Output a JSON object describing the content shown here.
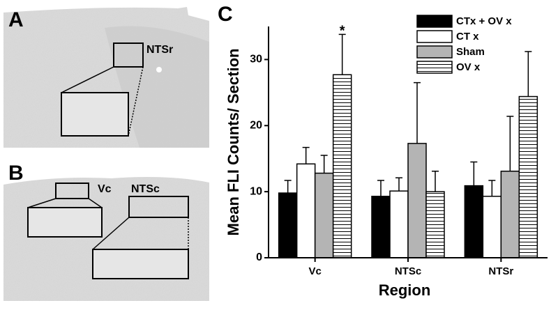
{
  "panels": {
    "a": {
      "letter": "A",
      "region": "NTSr"
    },
    "b": {
      "letter": "B",
      "region_1": "Vc",
      "region_2": "NTSc"
    }
  },
  "chart_data": {
    "type": "bar",
    "panel_letter": "C",
    "y_label": "Mean FLI Counts/ Section",
    "x_label": "Region",
    "categories": [
      "Vc",
      "NTSc",
      "NTSr"
    ],
    "series": [
      {
        "name": "CTx + OV x",
        "color": "#000000",
        "values": [
          9.8,
          9.3,
          10.9
        ],
        "errors": [
          1.9,
          2.4,
          3.6
        ]
      },
      {
        "name": "CT x",
        "color": "#ffffff",
        "values": [
          14.2,
          10.1,
          9.3
        ],
        "errors": [
          2.5,
          2.0,
          2.4
        ]
      },
      {
        "name": "Sham",
        "color": "#b4b4b4",
        "values": [
          12.8,
          17.3,
          13.1
        ],
        "errors": [
          2.7,
          9.2,
          8.3
        ]
      },
      {
        "name": "OV x",
        "color": "#ffffff",
        "hatch": "horizontal",
        "values": [
          27.7,
          10.0,
          24.4
        ],
        "errors": [
          6.1,
          3.1,
          6.8
        ]
      }
    ],
    "annotations": [
      "*"
    ],
    "ylim": [
      0,
      35
    ],
    "yticks": [
      0,
      10,
      20,
      30
    ],
    "legend": "upper right"
  }
}
